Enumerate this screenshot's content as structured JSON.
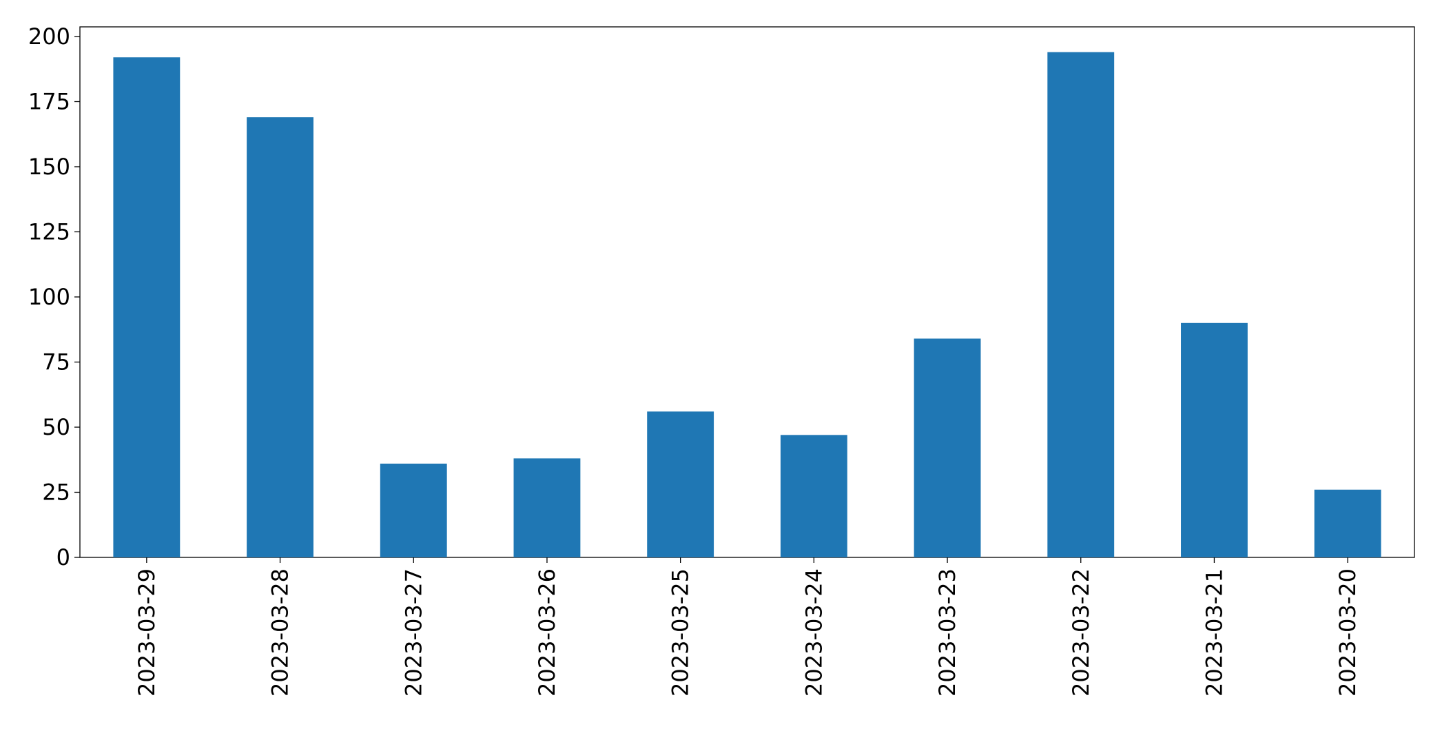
{
  "chart_data": {
    "type": "bar",
    "categories": [
      "2023-03-29",
      "2023-03-28",
      "2023-03-27",
      "2023-03-26",
      "2023-03-25",
      "2023-03-24",
      "2023-03-23",
      "2023-03-22",
      "2023-03-21",
      "2023-03-20"
    ],
    "values": [
      192,
      169,
      36,
      38,
      56,
      47,
      84,
      194,
      90,
      26
    ],
    "color": "#1f77b4",
    "ylim": [
      0,
      203.7
    ],
    "yticks": [
      0,
      25,
      50,
      75,
      100,
      125,
      150,
      175,
      200
    ],
    "grid": false
  }
}
